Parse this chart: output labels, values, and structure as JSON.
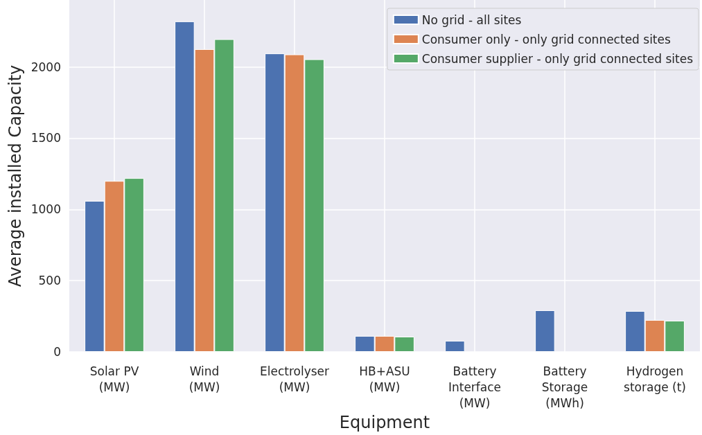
{
  "chart_data": {
    "type": "bar",
    "xlabel": "Equipment",
    "ylabel": "Average installed Capacity",
    "categories": [
      "Solar PV\n(MW)",
      "Wind\n(MW)",
      "Electrolyser\n(MW)",
      "HB+ASU\n(MW)",
      "Battery\nInterface\n(MW)",
      "Battery\nStorage\n(MWh)",
      "Hydrogen\nstorage (t)"
    ],
    "series": [
      {
        "name": "No grid - all sites",
        "color": "#4c72b0",
        "values": [
          1060,
          2320,
          2095,
          112,
          78,
          292,
          287
        ]
      },
      {
        "name": "Consumer only - only grid connected sites",
        "color": "#dd8452",
        "values": [
          1200,
          2125,
          2088,
          112,
          0,
          0,
          224
        ]
      },
      {
        "name": "Consumer supplier - only grid connected sites",
        "color": "#55a868",
        "values": [
          1220,
          2195,
          2054,
          107,
          0,
          0,
          219
        ]
      }
    ],
    "ylim": [
      0,
      2470
    ],
    "yticks": [
      0,
      500,
      1000,
      1500,
      2000
    ],
    "grid": true,
    "legend": "top right"
  }
}
